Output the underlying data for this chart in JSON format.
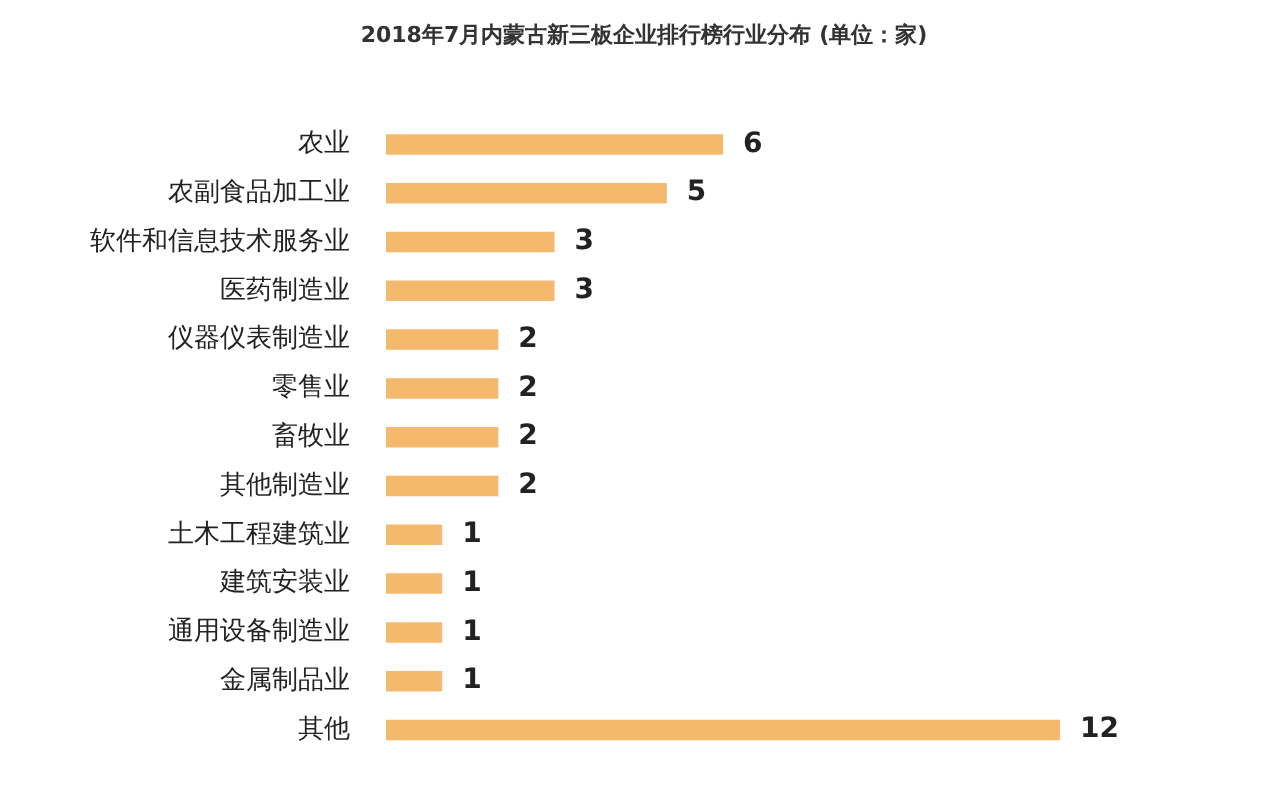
{
  "chart_data": {
    "type": "bar",
    "orientation": "horizontal",
    "title": "2018年7月内蒙古新三板企业排行榜行业分布",
    "subtitle": "(单位：家)",
    "categories": [
      "农业",
      "农副食品加工业",
      "软件和信息技术服务业",
      "医药制造业",
      "仪器仪表制造业",
      "零售业",
      "畜牧业",
      "其他制造业",
      "土木工程建筑业",
      "建筑安装业",
      "通用设备制造业",
      "金属制品业",
      "其他"
    ],
    "values": [
      6,
      5,
      3,
      3,
      2,
      2,
      2,
      2,
      1,
      1,
      1,
      1,
      12
    ],
    "color": "#f4b96c",
    "data_labels": true
  }
}
